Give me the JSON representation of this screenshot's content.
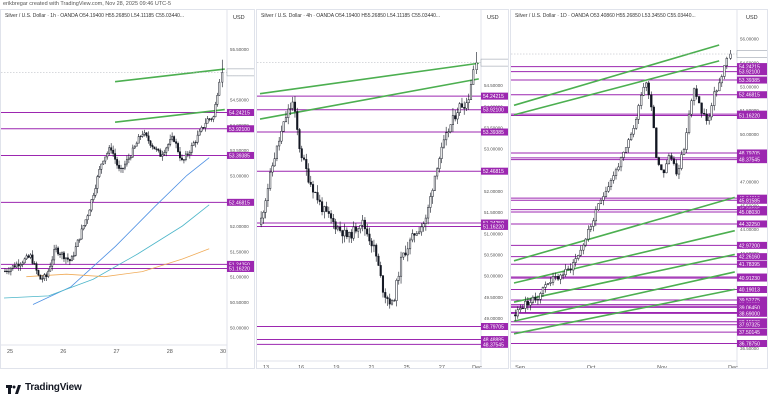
{
  "header": {
    "credit": "erikbregar created with TradingView.com, Nov 28, 2025 09:46 UTC-5"
  },
  "footer": {
    "brand": "TradingView"
  },
  "colors": {
    "candle": "#131722",
    "level": "#9c27b0",
    "trend": "#4caf50",
    "last_price": "#6b7280",
    "ma_fast": "#4c8fe3",
    "ma_mid": "#4db6c9",
    "ma_slow": "#f0ac59"
  },
  "chart_data": [
    {
      "type": "candlestick",
      "title": "Silver / U.S. Dollar · 1h · OANDA  O54.19400 H55.26850 L54.11185 C55.03440...",
      "unit": "USD",
      "x_ticks": [
        "25",
        "26",
        "27",
        "28",
        "30"
      ],
      "y_ticks": [
        "55.50000",
        "55.00000",
        "54.50000",
        "54.00000",
        "53.50000",
        "53.00000",
        "52.50000",
        "52.00000",
        "51.50000",
        "51.00000",
        "50.50000",
        "50.00000"
      ],
      "ylim": [
        49.75,
        55.95
      ],
      "levels": [
        "54.24215",
        "53.92100",
        "53.39385",
        "52.46815",
        "51.24250",
        "51.16220"
      ],
      "last_price": "55.03440",
      "trendlines": [
        [
          49.8,
          54.85,
          99.0,
          55.1
        ],
        [
          49.8,
          54.05,
          99.0,
          54.3
        ]
      ],
      "moving_averages": [
        {
          "color": "ma_fast",
          "points": [
            [
              13,
              50.45
            ],
            [
              30,
              50.8
            ],
            [
              50,
              51.6
            ],
            [
              68,
              52.4
            ],
            [
              82,
              53.0
            ],
            [
              92,
              53.35
            ]
          ]
        },
        {
          "color": "ma_mid",
          "points": [
            [
              0,
              50.58
            ],
            [
              20,
              50.62
            ],
            [
              40,
              50.95
            ],
            [
              60,
              51.45
            ],
            [
              80,
              52.0
            ],
            [
              92,
              52.42
            ]
          ]
        },
        {
          "color": "ma_slow",
          "points": [
            [
              10,
              51.0
            ],
            [
              28,
              51.05
            ],
            [
              45,
              51.0
            ],
            [
              62,
              51.1
            ],
            [
              80,
              51.35
            ],
            [
              92,
              51.55
            ]
          ]
        }
      ],
      "path": [
        [
          0,
          51.1
        ],
        [
          12,
          51.4
        ],
        [
          16,
          50.95
        ],
        [
          19,
          51.0
        ],
        [
          23,
          51.55
        ],
        [
          30,
          51.3
        ],
        [
          38,
          52.3
        ],
        [
          44,
          53.3
        ],
        [
          48,
          53.55
        ],
        [
          52,
          53.05
        ],
        [
          58,
          53.5
        ],
        [
          62,
          53.85
        ],
        [
          70,
          53.4
        ],
        [
          76,
          53.75
        ],
        [
          80,
          53.25
        ],
        [
          84,
          53.55
        ],
        [
          88,
          53.85
        ],
        [
          91,
          54.1
        ],
        [
          94,
          54.15
        ],
        [
          97,
          55.03
        ]
      ]
    },
    {
      "type": "candlestick",
      "title": "Silver / U.S. Dollar · 4h · OANDA  O54.19400 H55.26850 L54.11185 C55.03440...",
      "unit": "USD",
      "x_ticks": [
        "13",
        "16",
        "19",
        "21",
        "25",
        "27",
        "Dec"
      ],
      "y_ticks": [
        "55.00000",
        "54.50000",
        "54.00000",
        "53.50000",
        "53.00000",
        "52.50000",
        "52.00000",
        "51.50000",
        "51.00000",
        "50.50000",
        "50.00000",
        "49.50000",
        "49.00000",
        "48.50000"
      ],
      "ylim": [
        48.1,
        55.9
      ],
      "levels": [
        "54.24215",
        "53.92100",
        "53.39385",
        "52.46815",
        "51.24250",
        "51.16220",
        "48.79705",
        "48.48885",
        "48.37545"
      ],
      "last_price": "55.03440",
      "trendlines": [
        [
          0,
          54.3,
          99.0,
          55.02
        ],
        [
          0,
          53.7,
          99.0,
          54.65
        ]
      ],
      "moving_averages": [],
      "path": [
        [
          0,
          51.2
        ],
        [
          6,
          52.7
        ],
        [
          12,
          53.8
        ],
        [
          15,
          54.1
        ],
        [
          18,
          53.0
        ],
        [
          22,
          52.3
        ],
        [
          28,
          51.6
        ],
        [
          34,
          51.2
        ],
        [
          40,
          50.9
        ],
        [
          46,
          51.3
        ],
        [
          52,
          50.6
        ],
        [
          56,
          49.6
        ],
        [
          60,
          49.3
        ],
        [
          64,
          50.4
        ],
        [
          70,
          51.0
        ],
        [
          75,
          51.3
        ],
        [
          80,
          52.6
        ],
        [
          85,
          53.4
        ],
        [
          90,
          54.0
        ],
        [
          94,
          54.1
        ],
        [
          97,
          55.03
        ]
      ]
    },
    {
      "type": "candlestick",
      "title": "Silver / U.S. Dollar · 1D · OANDA  O53.40860 H55.26850 L53.34550 C55.03440...",
      "unit": "USD",
      "x_ticks": [
        "Sep",
        "Oct",
        "Nov",
        "Dec"
      ],
      "y_ticks": [
        "56.00000",
        "54.50000",
        "53.00000",
        "51.50000",
        "50.00000",
        "48.50000",
        "47.00000",
        "45.50000",
        "44.00000",
        "42.50000",
        "41.00000",
        "39.50000",
        "38.00000",
        "36.50000"
      ],
      "ylim": [
        36.0,
        56.8
      ],
      "levels": [
        "54.24215",
        "53.92100",
        "53.39385",
        "52.46815",
        "51.24250",
        "51.16220",
        "48.79705",
        "48.48885",
        "48.37545",
        "45.94810",
        "45.81585",
        "45.22585",
        "45.08030",
        "44.32250",
        "42.97200",
        "42.26160",
        "41.78395",
        "40.97785",
        "40.91230",
        "40.19013",
        "39.52775",
        "39.23870",
        "39.13280",
        "39.06450",
        "38.73800",
        "38.69000",
        "38.15530",
        "37.97325",
        "37.50145",
        "36.78750"
      ],
      "last_price": "55.03440",
      "trendlines": [
        [
          0,
          51.8,
          92.0,
          55.6
        ],
        [
          0,
          51.2,
          92.0,
          54.6
        ],
        [
          0,
          42.0,
          99.0,
          46.0
        ],
        [
          0,
          40.6,
          99.0,
          43.9
        ],
        [
          0,
          39.4,
          99.0,
          42.4
        ],
        [
          0,
          38.2,
          99.0,
          41.3
        ],
        [
          0,
          37.4,
          99.0,
          40.2
        ]
      ],
      "moving_averages": [],
      "path": [
        [
          0,
          38.6
        ],
        [
          5,
          39.3
        ],
        [
          10,
          39.6
        ],
        [
          15,
          40.7
        ],
        [
          20,
          41.0
        ],
        [
          25,
          41.5
        ],
        [
          30,
          42.7
        ],
        [
          35,
          44.4
        ],
        [
          40,
          46.2
        ],
        [
          45,
          47.5
        ],
        [
          50,
          48.9
        ],
        [
          55,
          51.0
        ],
        [
          57,
          52.6
        ],
        [
          59,
          53.4
        ],
        [
          62,
          51.6
        ],
        [
          64,
          48.3
        ],
        [
          67,
          47.6
        ],
        [
          70,
          48.7
        ],
        [
          73,
          47.6
        ],
        [
          76,
          48.9
        ],
        [
          79,
          51.6
        ],
        [
          81,
          52.9
        ],
        [
          84,
          51.4
        ],
        [
          87,
          50.8
        ],
        [
          90,
          52.6
        ],
        [
          93,
          53.4
        ],
        [
          96,
          55.03
        ]
      ]
    }
  ]
}
